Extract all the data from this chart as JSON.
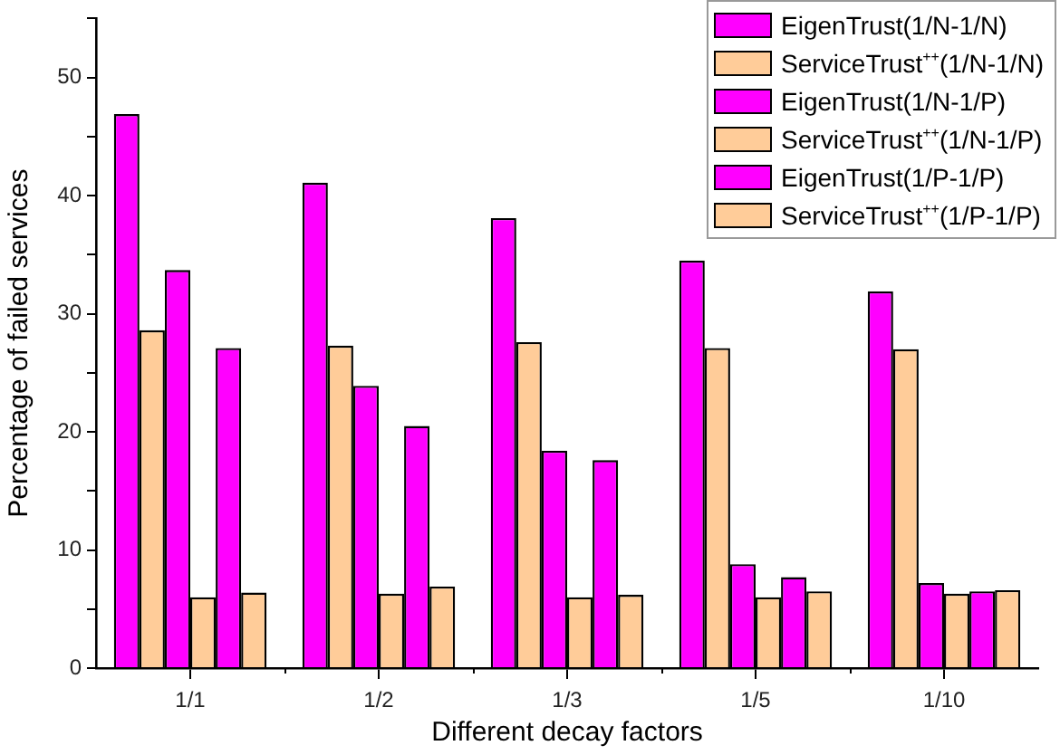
{
  "chart_data": {
    "type": "bar",
    "xlabel": "Different decay factors",
    "ylabel": "Percentage of failed services",
    "categories": [
      "1/1",
      "1/2",
      "1/3",
      "1/5",
      "1/10"
    ],
    "series": [
      {
        "name": "EigenTrust(1/N-1/N)",
        "color": "#ff00ff",
        "values": [
          46.9,
          41.1,
          38.1,
          34.5,
          31.9
        ]
      },
      {
        "name": "ServiceTrust$^{++}$(1/N-1/N)",
        "color": "#ffcc99",
        "values": [
          28.6,
          27.3,
          27.6,
          27.1,
          27.0
        ]
      },
      {
        "name": "EigenTrust(1/N-1/P)",
        "color": "#ff00ff",
        "values": [
          33.7,
          23.9,
          18.4,
          8.8,
          7.2
        ]
      },
      {
        "name": "ServiceTrust$^{++}$(1/N-1/P)",
        "color": "#ffcc99",
        "values": [
          6.0,
          6.3,
          6.0,
          6.0,
          6.3
        ]
      },
      {
        "name": "EigenTrust(1/P-1/P)",
        "color": "#ff00ff",
        "values": [
          27.1,
          20.5,
          17.6,
          7.7,
          6.5
        ]
      },
      {
        "name": "ServiceTrust$^{++}$(1/P-1/P)",
        "color": "#ffcc99",
        "values": [
          6.4,
          6.9,
          6.2,
          6.5,
          6.6
        ]
      }
    ],
    "ylim": [
      0,
      55
    ],
    "yticks": [
      0,
      {
        "value": 5,
        "label": null
      },
      10,
      {
        "value": 15,
        "label": null
      },
      20,
      {
        "value": 25,
        "label": null
      },
      30,
      {
        "value": 35,
        "label": null
      },
      40,
      {
        "value": 45,
        "label": null
      },
      50,
      {
        "value": 55,
        "label": null
      }
    ],
    "grid": false,
    "legend": "top right"
  }
}
